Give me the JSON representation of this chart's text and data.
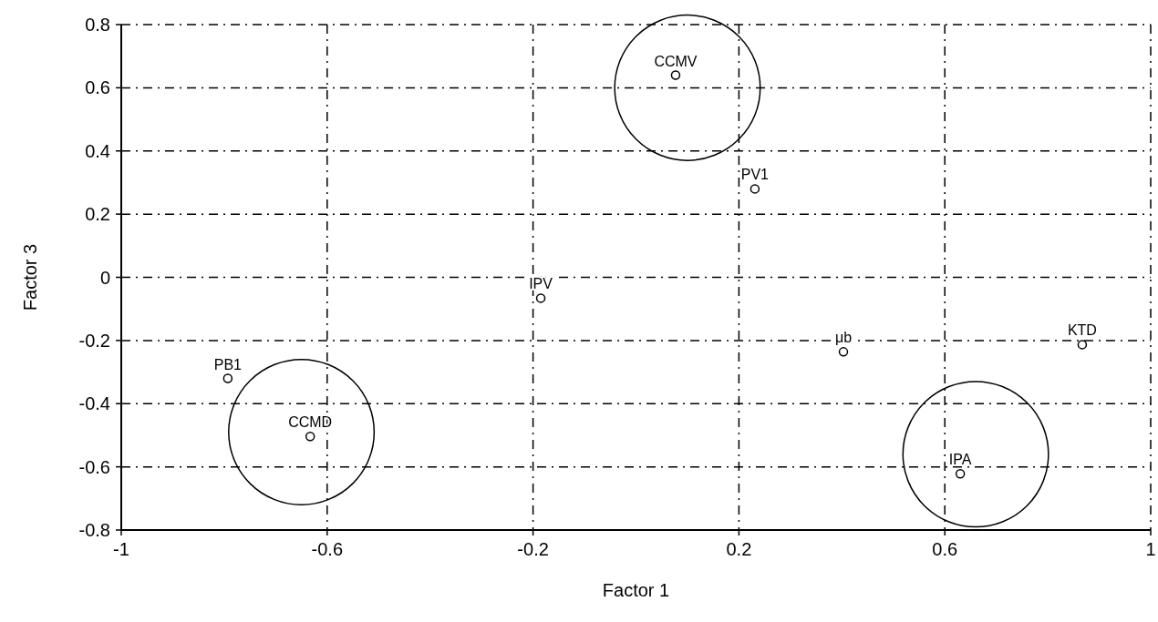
{
  "chart_data": {
    "type": "scatter",
    "xlabel": "Factor 1",
    "ylabel": "Factor 3",
    "series": [
      {
        "color": "#000000",
        "x": [
          0.077,
          0.231,
          -0.185,
          0.403,
          0.867,
          -0.793,
          -0.633,
          0.63
        ],
        "values": [
          0.64,
          0.28,
          -0.066,
          -0.236,
          -0.213,
          -0.32,
          -0.504,
          -0.622
        ]
      }
    ],
    "annotations": [
      {
        "text": "CCMV",
        "x": 0.077,
        "y": 0.64
      },
      {
        "text": "PV1",
        "x": 0.231,
        "y": 0.28
      },
      {
        "text": "IPV",
        "x": -0.185,
        "y": -0.066
      },
      {
        "text": "μb",
        "x": 0.403,
        "y": -0.236
      },
      {
        "text": "KTD",
        "x": 0.867,
        "y": -0.213
      },
      {
        "text": "PB1",
        "x": -0.793,
        "y": -0.32
      },
      {
        "text": "CCMD",
        "x": -0.633,
        "y": -0.504
      },
      {
        "text": "IPA",
        "x": 0.63,
        "y": -0.622
      }
    ],
    "xlim": [
      -1,
      1
    ],
    "xticks": [
      -1,
      -0.6,
      -0.2,
      0.2,
      0.6,
      1
    ],
    "ylim": [
      -0.8,
      0.8
    ],
    "yticks": [
      -0.8,
      -0.6,
      -0.4,
      -0.2,
      0,
      0.2,
      0.4,
      0.6,
      0.8
    ],
    "grid": true,
    "marker": "circle"
  }
}
